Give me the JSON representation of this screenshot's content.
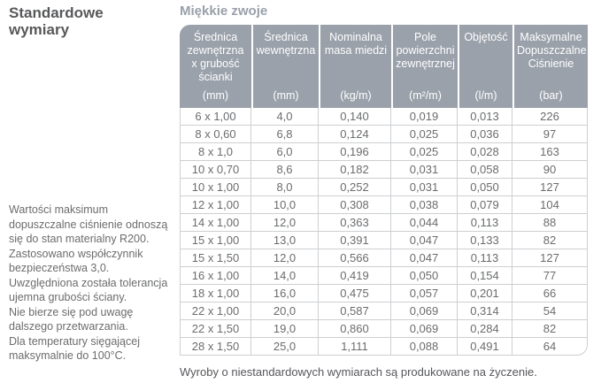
{
  "sidebar": {
    "title": "Standardowe wymiary",
    "note": "Wartości maksimum\ndopuszczalne ciśnienie odnoszą\nsię do stan materialny R200.\nZastosowano współczynnik\nbezpieczeństwa 3,0.\nUwzględniona została tolerancja\nujemna grubości ściany.\nNie bierze się pod uwagę\ndalszego przetwarzania.\nDla temperatury sięgającej\nmaksymalnie do 100°C."
  },
  "main": {
    "heading": "Miękkie zwoje",
    "footer": "Wyroby o niestandardowych wymiarach są produkowane na życzenie."
  },
  "table": {
    "columns": [
      {
        "title": "Średnica\nzewnętrzna\nx grubość\nścianki",
        "unit": "(mm)"
      },
      {
        "title": "Średnica\nwewnętrzna",
        "unit": "(mm)"
      },
      {
        "title": "Nominalna\nmasa miedzi",
        "unit": "(kg/m)"
      },
      {
        "title": "Pole\npowierzchni\nzewnętrznej",
        "unit": "(m²/m)"
      },
      {
        "title": "Objętość",
        "unit": "(l/m)"
      },
      {
        "title": "Maksymalne\nDopuszczalne\nCiśnienie",
        "unit": "(bar)"
      }
    ],
    "rows": [
      [
        "6 x 1,00",
        "4,0",
        "0,140",
        "0,019",
        "0,013",
        "226"
      ],
      [
        "8 x 0,60",
        "6,8",
        "0,124",
        "0,025",
        "0,036",
        "97"
      ],
      [
        "8 x 1,0",
        "6,0",
        "0,196",
        "0,025",
        "0,028",
        "163"
      ],
      [
        "10 x 0,70",
        "8,6",
        "0,182",
        "0,031",
        "0,058",
        "90"
      ],
      [
        "10 x 1,00",
        "8,0",
        "0,252",
        "0,031",
        "0,050",
        "127"
      ],
      [
        "12 x 1,00",
        "10,0",
        "0,308",
        "0,038",
        "0,079",
        "104"
      ],
      [
        "14 x 1,00",
        "12,0",
        "0,363",
        "0,044",
        "0,113",
        "88"
      ],
      [
        "15 x 1,00",
        "13,0",
        "0,391",
        "0,047",
        "0,133",
        "82"
      ],
      [
        "15 x 1,50",
        "12,0",
        "0,566",
        "0,047",
        "0,113",
        "127"
      ],
      [
        "16 x 1,00",
        "14,0",
        "0,419",
        "0,050",
        "0,154",
        "77"
      ],
      [
        "18 x 1,00",
        "16,0",
        "0,475",
        "0,057",
        "0,201",
        "66"
      ],
      [
        "22 x 1,00",
        "20,0",
        "0,587",
        "0,069",
        "0,314",
        "54"
      ],
      [
        "22 x 1,50",
        "19,0",
        "0,860",
        "0,069",
        "0,284",
        "82"
      ],
      [
        "28 x 1,50",
        "25,0",
        "1,111",
        "0,088",
        "0,491",
        "64"
      ]
    ]
  },
  "colors": {
    "header_bg": "#9aa1aa",
    "header_text": "#ffffff",
    "heading_text": "#99a0a9",
    "body_text": "#6b6c6e",
    "grid_line": "#cccfd2",
    "sidebar_title": "#57585a",
    "sidebar_text": "#6b6c6e",
    "footer_text": "#55565a"
  }
}
